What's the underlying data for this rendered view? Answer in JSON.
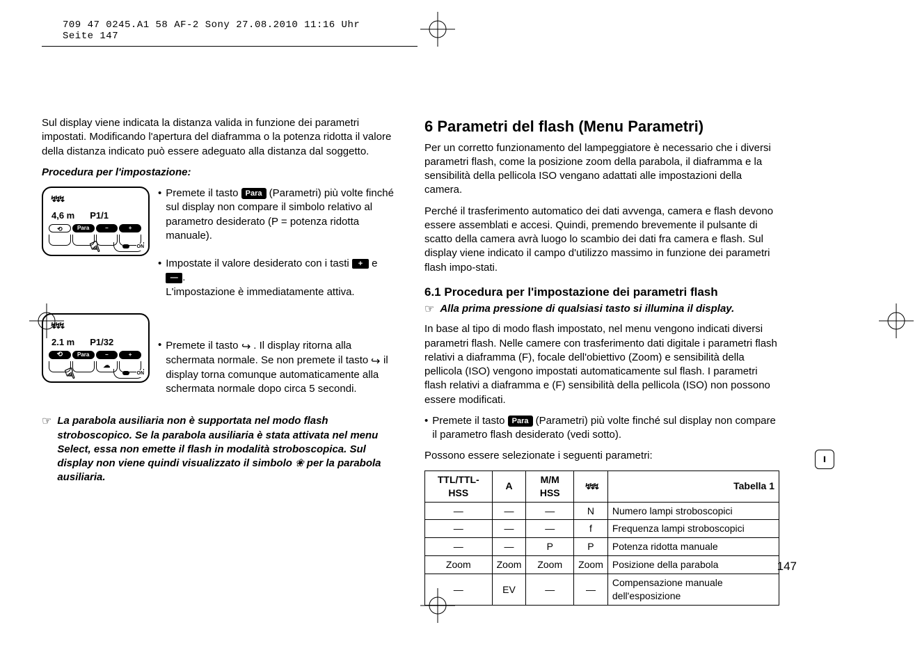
{
  "header": "709 47 0245.A1 58 AF-2 Sony  27.08.2010  11:16 Uhr  Seite 147",
  "left": {
    "intro": "Sul display viene indicata la distanza valida in funzione dei parametri impostati. Modificando l'apertura del diaframma o la potenza ridotta il valore della distanza indicato può essere adeguato alla distanza dal soggetto.",
    "procTitle": "Procedura per l'impostazione:",
    "dev1": {
      "d": "4,6 m",
      "p": "P1/1"
    },
    "step1a": "Premete il tasto ",
    "step1b": " (Parametri) più volte finché sul display non compare il simbolo relativo al parametro desiderato (P = potenza ridotta manuale).",
    "step2a": "Impostate il valore desiderato con i tasti ",
    "step2b": " e ",
    "step2c": ".",
    "step2d": "L'impostazione è immediatamente attiva.",
    "dev2": {
      "d": "2.1 m",
      "p": "P1/32"
    },
    "step3a": "Premete il tasto ",
    "step3b": " . Il display ritorna alla schermata normale. Se non premete il tasto ",
    "step3c": " il display torna comunque automaticamente alla schermata normale dopo circa 5 secondi.",
    "note": "La parabola ausiliaria non è supportata nel modo flash stroboscopico. Se la parabola ausiliaria è stata attivata nel menu Select, essa non emette il flash in modalità stroboscopica. Sul display non viene quindi visualizzato il simbolo ",
    "note2": " per la parabola ausiliaria."
  },
  "right": {
    "h2": "6 Parametri del flash (Menu Parametri)",
    "p1": "Per un corretto funzionamento del lampeggiatore è necessario che i diversi parametri flash, come la posizione zoom della parabola, il diaframma e la sensibilità della pellicola ISO vengano adattati alle impostazioni della camera.",
    "p2": "Perché il trasferimento automatico dei dati avvenga, camera e flash devono essere assemblati e accesi. Quindi, premendo brevemente il pulsante di scatto della camera avrà luogo lo scambio dei dati fra camera e flash. Sul display viene indicato il campo d'utilizzo massimo in funzione dei parametri flash impo-stati.",
    "h3": "6.1 Procedura per l'impostazione dei parametri flash",
    "sub": "Alla prima pressione di qualsiasi tasto si illumina il display.",
    "p3": "In base al tipo di modo flash impostato, nel menu vengono indicati diversi parametri flash. Nelle camere con trasferimento dati digitale i parametri flash relativi a diaframma (F), focale dell'obiettivo (Zoom) e sensibilità della pellicola (ISO) vengono impostati automaticamente sul flash. I parametri flash relativi a diaframma e (F) sensibilità della pellicola (ISO) non possono essere modificati.",
    "b1a": "Premete il tasto ",
    "b1b": " (Parametri) più volte finché sul display non compare il parametro flash desiderato (vedi sotto).",
    "p4": "Possono essere selezionate i seguenti parametri:",
    "table": {
      "headers": [
        "TTL/TTL-HSS",
        "A",
        "M/M HSS",
        "strobe",
        "Tabella 1"
      ],
      "rows": [
        [
          "—",
          "—",
          "—",
          "N",
          "Numero lampi stroboscopici"
        ],
        [
          "—",
          "—",
          "—",
          "f",
          "Frequenza lampi stroboscopici"
        ],
        [
          "—",
          "—",
          "P",
          "P",
          "Potenza ridotta manuale"
        ],
        [
          "Zoom",
          "Zoom",
          "Zoom",
          "Zoom",
          "Posizione della parabola"
        ],
        [
          "—",
          "EV",
          "—",
          "—",
          "Compensazione manuale dell'esposizione"
        ]
      ]
    }
  },
  "pagenum": "147",
  "sideTab": "ı",
  "badges": {
    "para": "Para",
    "plus": "+",
    "minus": "—"
  }
}
